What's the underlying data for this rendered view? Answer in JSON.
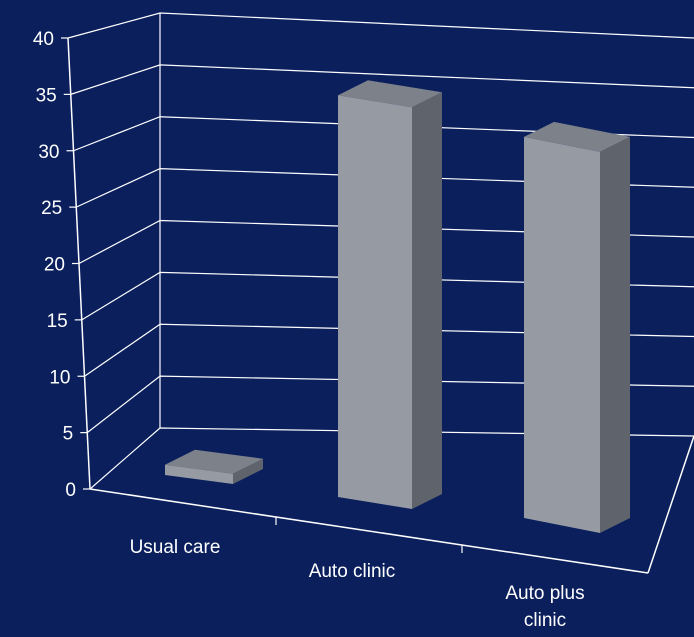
{
  "chart_data": {
    "type": "bar",
    "style": "3d",
    "categories": [
      "Usual care",
      "Auto clinic",
      "Auto plus clinic"
    ],
    "category_lines": [
      [
        "Usual care"
      ],
      [
        "Auto clinic"
      ],
      [
        "Auto plus",
        "clinic"
      ]
    ],
    "values": [
      1,
      39,
      37
    ],
    "yticks": [
      0,
      5,
      10,
      15,
      20,
      25,
      30,
      35,
      40
    ],
    "ylim": [
      0,
      40
    ],
    "title": "",
    "xlabel": "",
    "ylabel": "",
    "grid": true,
    "legend": "none"
  },
  "colors": {
    "background": "#0a1f5c",
    "axis": "#ffffff",
    "bar_front": "#959aa3",
    "bar_top": "#7c818a",
    "bar_side": "#5e636c",
    "text": "#ffffff"
  }
}
